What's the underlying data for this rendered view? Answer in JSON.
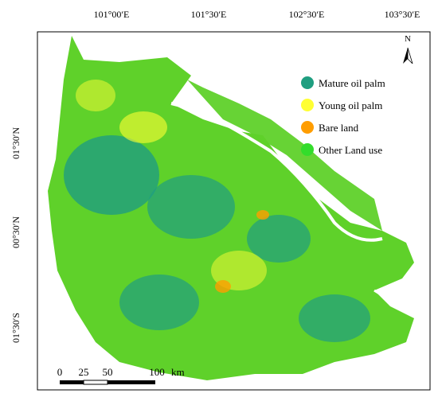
{
  "map": {
    "top_labels": [
      "101°00′E",
      "101°30′E",
      "102°30′E",
      "103°30′E"
    ],
    "left_labels": [
      "01°30′N",
      "00°30′N",
      "01°30′S"
    ],
    "north": "N",
    "legend": [
      {
        "label": "Mature oil palm",
        "color": "#1f9e80"
      },
      {
        "label": "Young oil palm",
        "color": "#ffff33"
      },
      {
        "label": "Bare land",
        "color": "#ff9d00"
      },
      {
        "label": "Other Land use",
        "color": "#33dd2b"
      }
    ],
    "scale_labels": [
      "0",
      "25",
      "50",
      "100"
    ],
    "scale_unit": "km"
  }
}
